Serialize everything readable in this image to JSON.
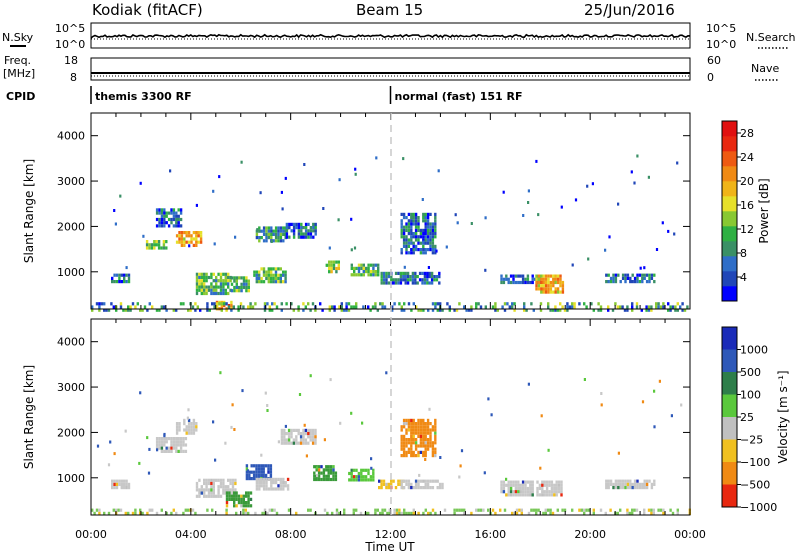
{
  "header": {
    "station": "Kodiak (fitACF)",
    "beam": "Beam 15",
    "date": "25/Jun/2016"
  },
  "summary_panel": {
    "left_top_label": "N.Sky",
    "left_mid_label": "Freq.",
    "left_unit_label": "[MHz]",
    "cpid_label": "CPID",
    "right_top_label": "N.Search",
    "right_mid_label": "Nave",
    "nsky_ticks": [
      "10^5",
      "10^0"
    ],
    "nsearch_ticks": [
      "10^5",
      "10^0"
    ],
    "freq_ticks": [
      "18",
      "8"
    ],
    "nave_ticks": [
      "60",
      "0"
    ],
    "cpid_segments": [
      {
        "start_hour": 0,
        "label": "themis 3300 RF"
      },
      {
        "start_hour": 12,
        "label": "normal (fast) 151 RF"
      }
    ]
  },
  "chart_data": [
    {
      "type": "heatmap",
      "title": "",
      "quantity": "Power",
      "xlabel": "",
      "ylabel": "Slant Range [km]",
      "xlim": [
        0,
        24
      ],
      "ylim": [
        180,
        4500
      ],
      "y_ticks": [
        "1000",
        "2000",
        "3000",
        "4000"
      ],
      "colorbar": {
        "label": "Power [dB]",
        "range": [
          0,
          30
        ],
        "tick_labels": [
          "4",
          "8",
          "12",
          "16",
          "20",
          "24",
          "28"
        ],
        "colors": [
          "#0000ff",
          "#2046b8",
          "#2f6ec8",
          "#3a9066",
          "#2fb043",
          "#88c832",
          "#e6e02a",
          "#f0b418",
          "#f08a14",
          "#ee5a12",
          "#e82810",
          "#e01010"
        ]
      },
      "echo_regions": [
        {
          "hour_start": 0.8,
          "hour_end": 1.5,
          "range_km_low": 760,
          "range_km_high": 960,
          "value_db": 6
        },
        {
          "hour_start": 2.2,
          "hour_end": 3.0,
          "range_km_low": 1520,
          "range_km_high": 1700,
          "value_db": 14
        },
        {
          "hour_start": 2.6,
          "hour_end": 3.6,
          "range_km_low": 2000,
          "range_km_high": 2400,
          "value_db": 6
        },
        {
          "hour_start": 3.4,
          "hour_end": 4.4,
          "range_km_low": 1580,
          "range_km_high": 1900,
          "value_db": 18
        },
        {
          "hour_start": 4.2,
          "hour_end": 5.6,
          "range_km_low": 520,
          "range_km_high": 980,
          "value_db": 12
        },
        {
          "hour_start": 5.0,
          "hour_end": 5.6,
          "range_km_low": 180,
          "range_km_high": 360,
          "value_db": 22
        },
        {
          "hour_start": 5.6,
          "hour_end": 6.3,
          "range_km_low": 600,
          "range_km_high": 900,
          "value_db": 10
        },
        {
          "hour_start": 6.5,
          "hour_end": 7.8,
          "range_km_low": 800,
          "range_km_high": 1100,
          "value_db": 10
        },
        {
          "hour_start": 6.6,
          "hour_end": 7.9,
          "range_km_low": 1700,
          "range_km_high": 2000,
          "value_db": 8
        },
        {
          "hour_start": 7.8,
          "hour_end": 9.0,
          "range_km_low": 1780,
          "range_km_high": 2080,
          "value_db": 6
        },
        {
          "hour_start": 9.4,
          "hour_end": 9.9,
          "range_km_low": 1000,
          "range_km_high": 1250,
          "value_db": 14
        },
        {
          "hour_start": 10.4,
          "hour_end": 11.5,
          "range_km_low": 920,
          "range_km_high": 1180,
          "value_db": 10
        },
        {
          "hour_start": 11.6,
          "hour_end": 14.0,
          "range_km_low": 760,
          "range_km_high": 1000,
          "value_db": 6
        },
        {
          "hour_start": 12.4,
          "hour_end": 13.8,
          "range_km_low": 1400,
          "range_km_high": 2300,
          "value_db": 6
        },
        {
          "hour_start": 16.4,
          "hour_end": 18.0,
          "range_km_low": 740,
          "range_km_high": 940,
          "value_db": 6
        },
        {
          "hour_start": 17.8,
          "hour_end": 18.9,
          "range_km_low": 560,
          "range_km_high": 940,
          "value_db": 20
        },
        {
          "hour_start": 20.6,
          "hour_end": 22.6,
          "range_km_low": 780,
          "range_km_high": 960,
          "value_db": 6
        },
        {
          "hour_start": 0.0,
          "hour_end": 24.0,
          "range_km_low": 180,
          "range_km_high": 330,
          "value_db": 8
        }
      ]
    },
    {
      "type": "heatmap",
      "title": "",
      "quantity": "Velocity",
      "xlabel": "Time UT",
      "ylabel": "Slant Range [km]",
      "xlim": [
        0,
        24
      ],
      "ylim": [
        180,
        4500
      ],
      "x_ticks": [
        "00:00",
        "04:00",
        "08:00",
        "12:00",
        "16:00",
        "20:00",
        "00:00"
      ],
      "y_ticks": [
        "1000",
        "2000",
        "3000",
        "4000"
      ],
      "colorbar": {
        "label": "Velocity [m s⁻¹]",
        "tick_labels": [
          "1000",
          "500",
          "100",
          "25",
          "−25",
          "−100",
          "−500",
          "−1000"
        ],
        "colors": [
          "#1a2bb8",
          "#2e58b8",
          "#2e7e4a",
          "#5ac83c",
          "#c0c0c0",
          "#f0c020",
          "#f08a14",
          "#e82810"
        ]
      },
      "echo_regions": [
        {
          "hour_start": 0.8,
          "hour_end": 1.5,
          "range_km_low": 760,
          "range_km_high": 960,
          "value": "ground"
        },
        {
          "hour_start": 2.6,
          "hour_end": 3.8,
          "range_km_low": 1560,
          "range_km_high": 1900,
          "value": "ground"
        },
        {
          "hour_start": 3.4,
          "hour_end": 4.2,
          "range_km_low": 2000,
          "range_km_high": 2300,
          "value": "ground"
        },
        {
          "hour_start": 4.2,
          "hour_end": 5.8,
          "range_km_low": 560,
          "range_km_high": 980,
          "value": "ground"
        },
        {
          "hour_start": 5.4,
          "hour_end": 6.4,
          "range_km_low": 380,
          "range_km_high": 700,
          "value": "+100"
        },
        {
          "hour_start": 6.2,
          "hour_end": 7.2,
          "range_km_low": 1000,
          "range_km_high": 1300,
          "value": "+200"
        },
        {
          "hour_start": 6.6,
          "hour_end": 7.9,
          "range_km_low": 780,
          "range_km_high": 1000,
          "value": "ground"
        },
        {
          "hour_start": 7.6,
          "hour_end": 9.0,
          "range_km_low": 1780,
          "range_km_high": 2080,
          "value": "ground"
        },
        {
          "hour_start": 8.9,
          "hour_end": 9.8,
          "range_km_low": 980,
          "range_km_high": 1280,
          "value": "+100"
        },
        {
          "hour_start": 10.3,
          "hour_end": 11.3,
          "range_km_low": 940,
          "range_km_high": 1200,
          "value": "+50"
        },
        {
          "hour_start": 11.5,
          "hour_end": 12.5,
          "range_km_low": 780,
          "range_km_high": 960,
          "value": "-60"
        },
        {
          "hour_start": 12.4,
          "hour_end": 13.8,
          "range_km_low": 1500,
          "range_km_high": 2300,
          "value": "-300"
        },
        {
          "hour_start": 12.4,
          "hour_end": 14.2,
          "range_km_low": 780,
          "range_km_high": 960,
          "value": "ground"
        },
        {
          "hour_start": 16.4,
          "hour_end": 18.9,
          "range_km_low": 640,
          "range_km_high": 940,
          "value": "ground"
        },
        {
          "hour_start": 20.6,
          "hour_end": 22.6,
          "range_km_low": 780,
          "range_km_high": 960,
          "value": "ground"
        },
        {
          "hour_start": 0.0,
          "hour_end": 24.0,
          "range_km_low": 180,
          "range_km_high": 320,
          "value": "+50"
        }
      ]
    }
  ]
}
